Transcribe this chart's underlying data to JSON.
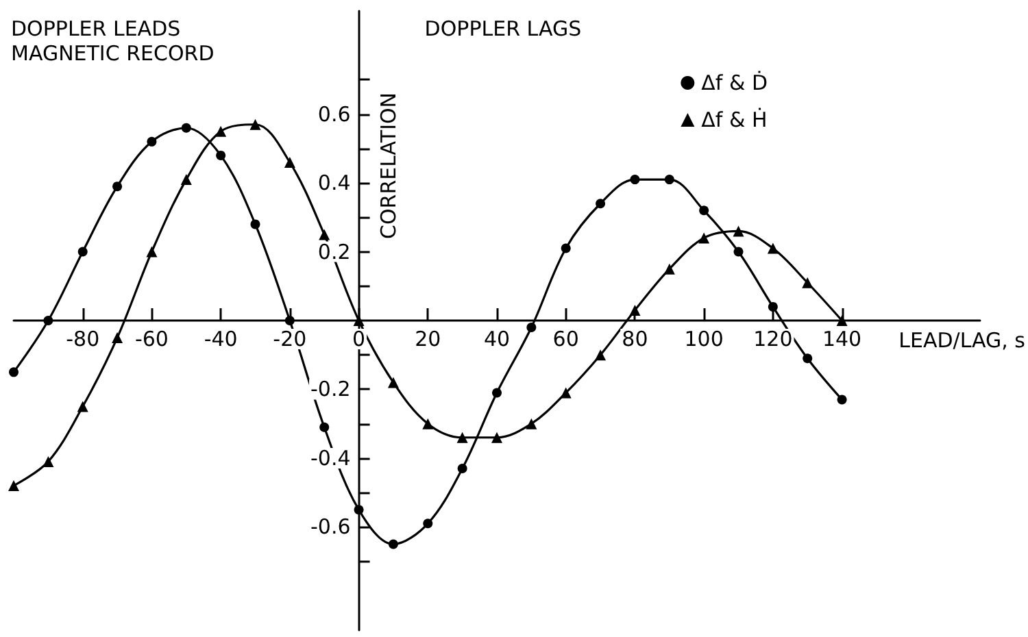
{
  "chart_data": {
    "type": "line",
    "xlabel": "LEAD/LAG, s",
    "ylabel": "CORRELATION",
    "annotations": [
      "DOPPLER LEADS\nMAGNETIC RECORD",
      "DOPPLER LAGS"
    ],
    "x": [
      -100,
      -90,
      -80,
      -70,
      -60,
      -50,
      -40,
      -30,
      -20,
      -10,
      0,
      10,
      20,
      30,
      40,
      50,
      60,
      70,
      80,
      90,
      100,
      110,
      120,
      130,
      140
    ],
    "series": [
      {
        "name": "Δf & Ḋ",
        "color": "#000000",
        "marker": "circle",
        "values": [
          -0.15,
          0.0,
          0.2,
          0.39,
          0.52,
          0.56,
          0.48,
          0.28,
          0.0,
          -0.31,
          -0.55,
          -0.65,
          -0.59,
          -0.43,
          -0.21,
          -0.02,
          0.21,
          0.34,
          0.41,
          0.41,
          0.32,
          0.2,
          0.04,
          -0.11,
          -0.23
        ]
      },
      {
        "name": "Δf & Ḣ",
        "color": "#000000",
        "marker": "triangle",
        "values": [
          -0.48,
          -0.41,
          -0.25,
          -0.05,
          0.2,
          0.41,
          0.55,
          0.57,
          0.46,
          0.25,
          0.0,
          -0.18,
          -0.3,
          -0.34,
          -0.34,
          -0.3,
          -0.21,
          -0.1,
          0.03,
          0.15,
          0.24,
          0.26,
          0.21,
          0.11,
          0.0
        ]
      }
    ],
    "xlim": [
      -100,
      180
    ],
    "ylim": [
      -0.9,
      0.9
    ],
    "xticks": [
      -80,
      -60,
      -40,
      -20,
      0,
      20,
      40,
      60,
      80,
      100,
      120,
      140
    ],
    "yticks": [
      {
        "value": -0.7,
        "label": null
      },
      {
        "value": -0.6,
        "label": "-0.6"
      },
      {
        "value": -0.5,
        "label": null
      },
      {
        "value": -0.4,
        "label": "-0.4"
      },
      {
        "value": -0.3,
        "label": null
      },
      {
        "value": -0.2,
        "label": "-0.2"
      },
      {
        "value": -0.1,
        "label": null
      },
      {
        "value": 0.1,
        "label": null
      },
      {
        "value": 0.2,
        "label": "0.2"
      },
      {
        "value": 0.3,
        "label": null
      },
      {
        "value": 0.4,
        "label": "0.4"
      },
      {
        "value": 0.5,
        "label": null
      },
      {
        "value": 0.6,
        "label": "0.6"
      },
      {
        "value": 0.7,
        "label": null
      }
    ],
    "grid": false,
    "legend": "top right",
    "line_style": "solid"
  }
}
